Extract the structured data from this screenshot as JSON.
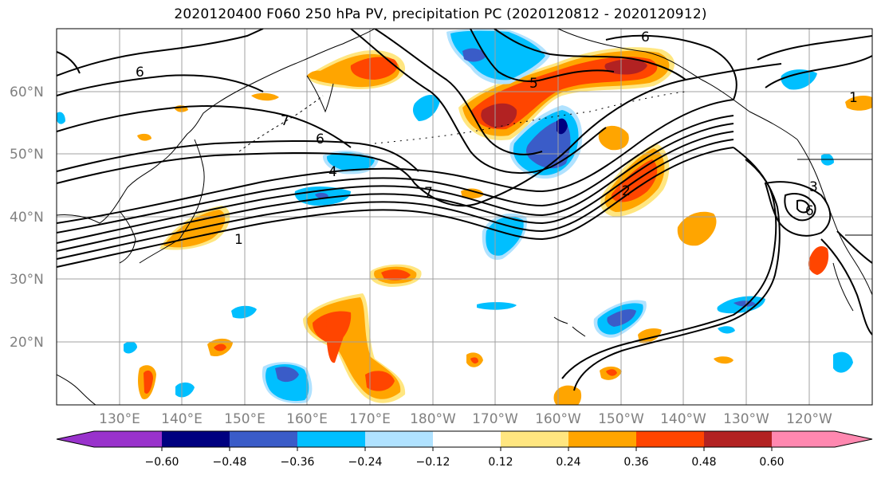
{
  "title": "2020120400 F060 250 hPa PV, precipitation PC (2020120812 - 2020120912)",
  "lat_labels": [
    "60°N",
    "50°N",
    "40°N",
    "30°N",
    "20°N"
  ],
  "lon_labels": [
    "130°E",
    "140°E",
    "150°E",
    "160°E",
    "170°E",
    "180°W",
    "170°W",
    "160°W",
    "150°W",
    "140°W",
    "130°W",
    "120°W"
  ],
  "contour_labels": [
    "6",
    "7",
    "6",
    "4",
    "7",
    "1",
    "5",
    "6",
    "2",
    "6",
    "3",
    "1"
  ],
  "colorbar": {
    "ticks": [
      "−0.60",
      "−0.48",
      "−0.36",
      "−0.24",
      "−0.12",
      "0.12",
      "0.24",
      "0.36",
      "0.48",
      "0.60"
    ],
    "colors": [
      "#9932cc",
      "#000080",
      "#3a5cc8",
      "#00bfff",
      "#b0e2ff",
      "#ffffff",
      "#ffe680",
      "#ffa500",
      "#ff4500",
      "#b22222",
      "#ff88b0"
    ]
  },
  "fill_colors": {
    "neg_light": "#b0e2ff",
    "neg_mid": "#00bfff",
    "neg_strong": "#3a5cc8",
    "neg_extreme": "#000080",
    "pos_light": "#ffe680",
    "pos_mid": "#ffa500",
    "pos_strong": "#ff4500",
    "pos_extreme": "#b22222"
  }
}
